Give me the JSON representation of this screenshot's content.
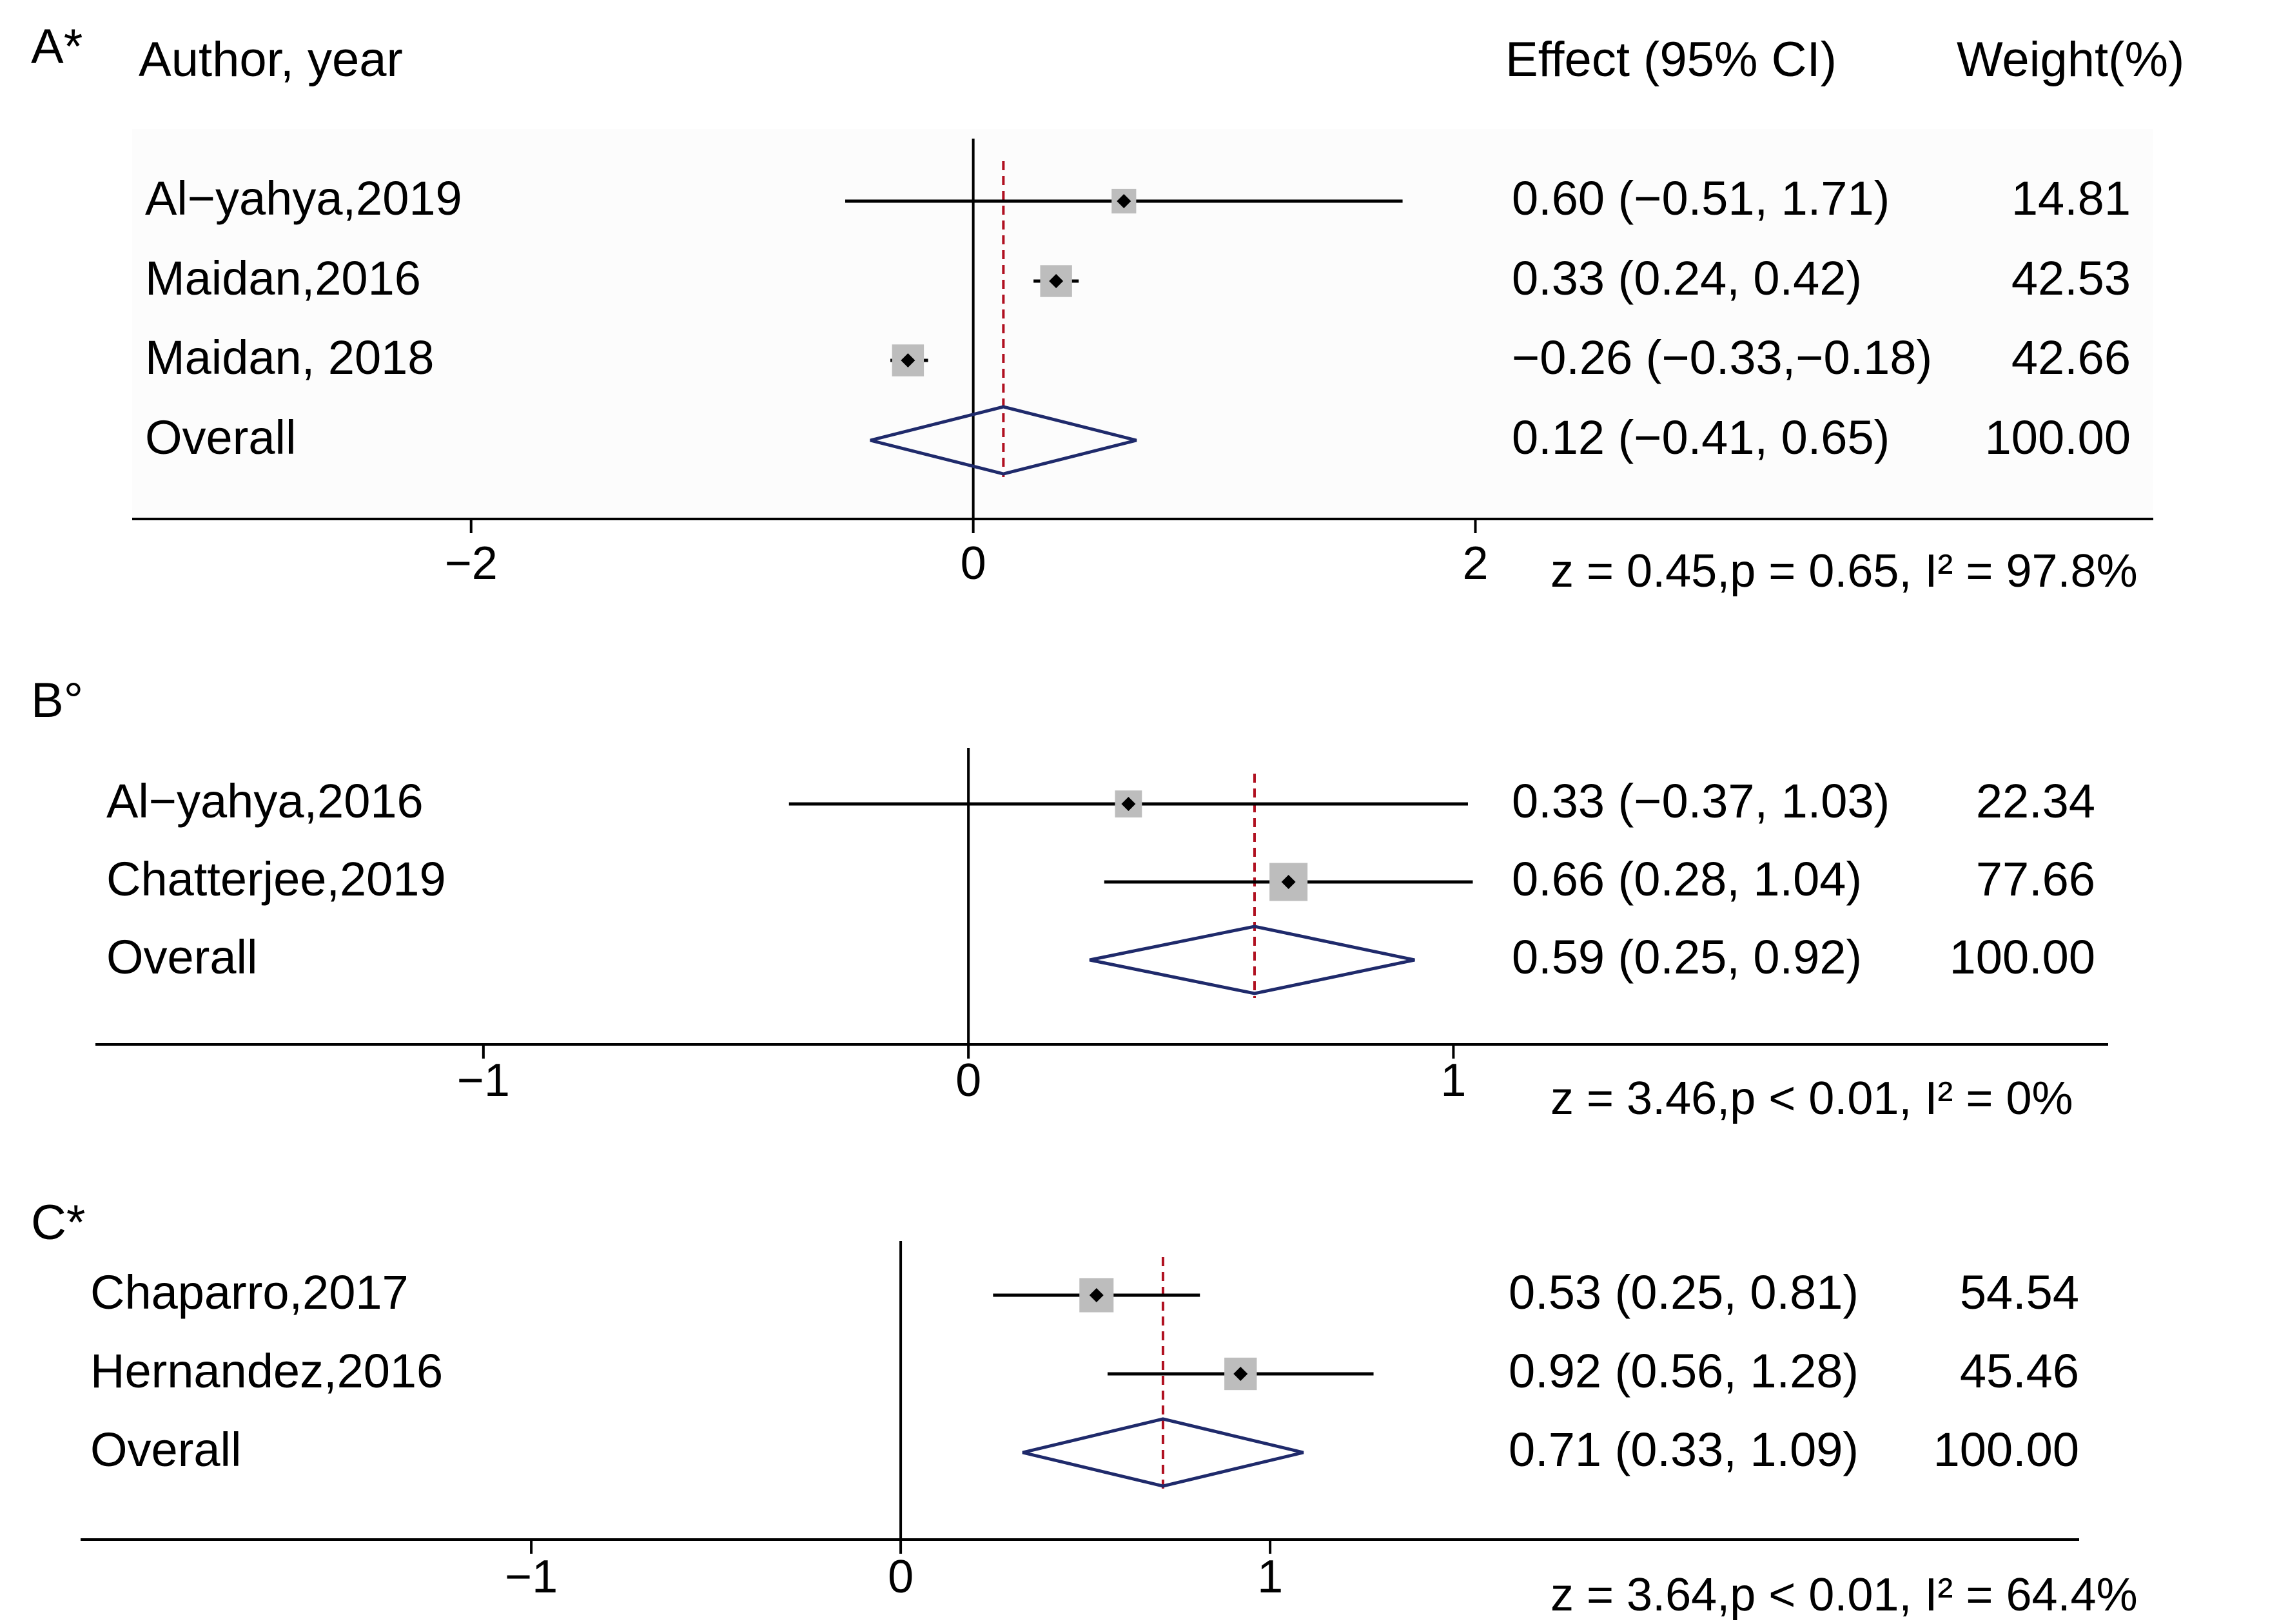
{
  "colors": {
    "text": "#000000",
    "diamond": "#1f2a6b",
    "box": "#bdbdbd",
    "reference": "#b01020",
    "axis": "#000000"
  },
  "headers": {
    "study": "Author, year",
    "effect": "Effect (95% CI)",
    "weight": "Weight(%)"
  },
  "chart_data": [
    {
      "type": "forest",
      "panel": "A*",
      "xlim": [
        -3.35,
        4.7
      ],
      "ticks": [
        -2,
        0,
        2
      ],
      "tick_labels": [
        "−2",
        "0",
        "2"
      ],
      "studies": [
        {
          "label": "Al−yahya,2019",
          "effect": 0.6,
          "lower": -0.51,
          "upper": 1.71,
          "weight": 14.81,
          "effect_text": "0.60 (−0.51, 1.71)",
          "weight_text": "14.81"
        },
        {
          "label": "Maidan,2016",
          "effect": 0.33,
          "lower": 0.24,
          "upper": 0.42,
          "weight": 42.53,
          "effect_text": "0.33 (0.24, 0.42)",
          "weight_text": "42.53"
        },
        {
          "label": "Maidan, 2018",
          "effect": -0.26,
          "lower": -0.33,
          "upper": -0.18,
          "weight": 42.66,
          "effect_text": "−0.26 (−0.33,−0.18)",
          "weight_text": "42.66"
        }
      ],
      "overall": {
        "label": "Overall",
        "effect": 0.12,
        "lower": -0.41,
        "upper": 0.65,
        "weight": 100.0,
        "effect_text": "0.12 (−0.41, 0.65)",
        "weight_text": "100.00"
      },
      "stats": "z = 0.45,p = 0.65, I² =  97.8%"
    },
    {
      "type": "forest",
      "panel": "B°",
      "xlim": [
        -1.8,
        2.35
      ],
      "ticks": [
        -1,
        0,
        1
      ],
      "tick_labels": [
        "−1",
        "0",
        "1"
      ],
      "studies": [
        {
          "label": "Al−yahya,2016",
          "effect": 0.33,
          "lower": -0.37,
          "upper": 1.03,
          "weight": 22.34,
          "effect_text": "0.33 (−0.37, 1.03)",
          "weight_text": "22.34"
        },
        {
          "label": "Chatterjee,2019",
          "effect": 0.66,
          "lower": 0.28,
          "upper": 1.04,
          "weight": 77.66,
          "effect_text": "0.66 (0.28, 1.04)",
          "weight_text": "77.66"
        }
      ],
      "overall": {
        "label": "Overall",
        "effect": 0.59,
        "lower": 0.25,
        "upper": 0.92,
        "weight": 100.0,
        "effect_text": "0.59 (0.25, 0.92)",
        "weight_text": "100.00"
      },
      "stats": "z = 3.46,p < 0.01, I² = 0%"
    },
    {
      "type": "forest",
      "panel": "C*",
      "xlim": [
        -2.22,
        3.19
      ],
      "ticks": [
        -1,
        0,
        1
      ],
      "tick_labels": [
        "−1",
        "0",
        "1"
      ],
      "studies": [
        {
          "label": "Chaparro,2017",
          "effect": 0.53,
          "lower": 0.25,
          "upper": 0.81,
          "weight": 54.54,
          "effect_text": "0.53 (0.25, 0.81)",
          "weight_text": "54.54"
        },
        {
          "label": "Hernandez,2016",
          "effect": 0.92,
          "lower": 0.56,
          "upper": 1.28,
          "weight": 45.46,
          "effect_text": "0.92 (0.56, 1.28)",
          "weight_text": "45.46"
        }
      ],
      "overall": {
        "label": "Overall",
        "effect": 0.71,
        "lower": 0.33,
        "upper": 1.09,
        "weight": 100.0,
        "effect_text": "0.71 (0.33, 1.09)",
        "weight_text": "100.00"
      },
      "stats": "z = 3.64,p < 0.01, I² = 64.4%"
    }
  ]
}
